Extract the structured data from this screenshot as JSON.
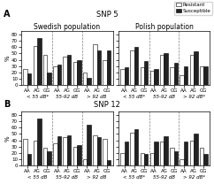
{
  "chart_data": [
    {
      "type": "bar",
      "title": "Swedish population",
      "subtitle": "SNP 5",
      "annotations": [
        "A"
      ],
      "groups": [
        "< 55 dB*",
        "55-92 dB",
        "> 92 dB"
      ],
      "categories": [
        "AA",
        "AG",
        "GG",
        "AA",
        "AG",
        "GG",
        "AA",
        "AG",
        "GG"
      ],
      "series": [
        {
          "name": "Resistant",
          "color": "white",
          "values": [
            26,
            62,
            48,
            30,
            45,
            37,
            20,
            65,
            40
          ]
        },
        {
          "name": "Susceptible",
          "color": "#222222",
          "values": [
            18,
            75,
            20,
            32,
            48,
            40,
            12,
            55,
            55
          ]
        }
      ],
      "ylabel": "%",
      "ylim": [
        0,
        85
      ],
      "yticks": [
        0,
        10,
        20,
        30,
        40,
        50,
        60,
        70,
        80
      ]
    },
    {
      "type": "bar",
      "title": "Polish population",
      "groups": [
        "< 55 dB*",
        "55-92 dB",
        "> 92 dB*"
      ],
      "categories": [
        "AA",
        "AG",
        "GG",
        "AA",
        "AG",
        "GG",
        "AA",
        "AG",
        "GG"
      ],
      "series": [
        {
          "name": "Resistant",
          "color": "white",
          "values": [
            26,
            55,
            28,
            22,
            48,
            28,
            16,
            48,
            30
          ]
        },
        {
          "name": "Susceptible",
          "color": "#222222",
          "values": [
            28,
            60,
            38,
            25,
            50,
            35,
            30,
            53,
            30
          ]
        }
      ],
      "ylim": [
        0,
        85
      ],
      "yticks": [
        0,
        10,
        20,
        30,
        40,
        50,
        60,
        70,
        80
      ],
      "tick_labels": "x",
      "legend": "upper right"
    },
    {
      "type": "bar",
      "subtitle": "SNP 12",
      "annotations": [
        "B"
      ],
      "groups": [
        "< 55 dB",
        "55-92 dB",
        "> 92 dB"
      ],
      "categories": [
        "AA",
        "AG",
        "GG",
        "AA",
        "AG",
        "GG",
        "AA",
        "AG",
        "GG"
      ],
      "series": [
        {
          "name": "Resistant",
          "color": "white",
          "values": [
            42,
            40,
            28,
            35,
            45,
            30,
            10,
            48,
            42
          ]
        },
        {
          "name": "Susceptible",
          "color": "#222222",
          "values": [
            18,
            75,
            22,
            46,
            48,
            32,
            65,
            45,
            8
          ]
        }
      ],
      "ylabel": "%",
      "ylim": [
        0,
        85
      ],
      "yticks": [
        0,
        10,
        20,
        30,
        40,
        50,
        60,
        70,
        80
      ]
    },
    {
      "type": "bar",
      "groups": [
        "< 55 dB*",
        "55-92 dB",
        "> 92 dB*"
      ],
      "categories": [
        "AA",
        "AG",
        "GG",
        "AA",
        "AG",
        "GG",
        "AA",
        "AG",
        "GG"
      ],
      "series": [
        {
          "name": "Resistant",
          "color": "white",
          "values": [
            20,
            52,
            20,
            20,
            38,
            28,
            10,
            40,
            28
          ]
        },
        {
          "name": "Susceptible",
          "color": "#222222",
          "values": [
            38,
            58,
            18,
            38,
            46,
            22,
            38,
            50,
            18
          ]
        }
      ],
      "ylim": [
        0,
        85
      ],
      "yticks": [
        0,
        10,
        20,
        30,
        40,
        50,
        60,
        70,
        80
      ],
      "tick_labels": "x"
    }
  ]
}
